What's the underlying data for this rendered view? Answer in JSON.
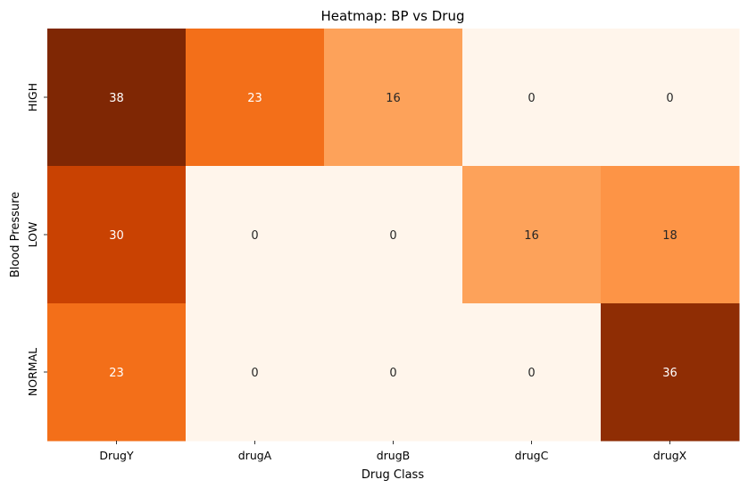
{
  "chart_data": {
    "type": "heatmap",
    "title": "Heatmap: BP vs Drug",
    "xlabel": "Drug Class",
    "ylabel": "Blood Pressure",
    "x_categories": [
      "DrugY",
      "drugA",
      "drugB",
      "drugC",
      "drugX"
    ],
    "y_categories": [
      "HIGH",
      "LOW",
      "NORMAL"
    ],
    "values": [
      [
        38,
        23,
        16,
        0,
        0
      ],
      [
        30,
        0,
        0,
        16,
        18
      ],
      [
        23,
        0,
        0,
        0,
        36
      ]
    ],
    "colormap": "Oranges",
    "color_range": [
      0,
      38
    ],
    "annotations": true,
    "colorbar": false,
    "grid": false
  }
}
